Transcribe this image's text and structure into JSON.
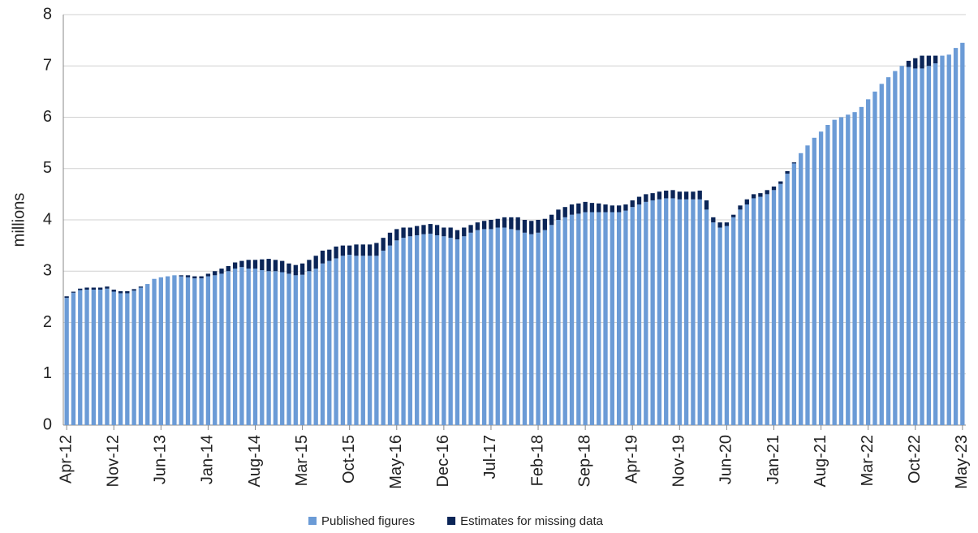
{
  "chart_data": {
    "type": "stacked_bar",
    "y_label": "millions",
    "categories": [
      "Apr-12",
      null,
      null,
      null,
      null,
      null,
      null,
      "Nov-12",
      null,
      null,
      null,
      null,
      null,
      null,
      "Jun-13",
      null,
      null,
      null,
      null,
      null,
      null,
      "Jan-14",
      null,
      null,
      null,
      null,
      null,
      null,
      "Aug-14",
      null,
      null,
      null,
      null,
      null,
      null,
      "Mar-15",
      null,
      null,
      null,
      null,
      null,
      null,
      "Oct-15",
      null,
      null,
      null,
      null,
      null,
      null,
      "May-16",
      null,
      null,
      null,
      null,
      null,
      null,
      "Dec-16",
      null,
      null,
      null,
      null,
      null,
      null,
      "Jul-17",
      null,
      null,
      null,
      null,
      null,
      null,
      "Feb-18",
      null,
      null,
      null,
      null,
      null,
      null,
      "Sep-18",
      null,
      null,
      null,
      null,
      null,
      null,
      "Apr-19",
      null,
      null,
      null,
      null,
      null,
      null,
      "Nov-19",
      null,
      null,
      null,
      null,
      null,
      null,
      "Jun-20",
      null,
      null,
      null,
      null,
      null,
      null,
      "Jan-21",
      null,
      null,
      null,
      null,
      null,
      null,
      "Aug-21",
      null,
      null,
      null,
      null,
      null,
      null,
      "Mar-22",
      null,
      null,
      null,
      null,
      null,
      null,
      "Oct-22",
      null,
      null,
      null,
      null,
      null,
      null,
      "May-23"
    ],
    "series": [
      {
        "name": "Published figures",
        "color": "#6b9bd6",
        "values": [
          2.48,
          2.58,
          2.63,
          2.64,
          2.64,
          2.64,
          2.66,
          2.6,
          2.57,
          2.57,
          2.62,
          2.68,
          2.75,
          2.85,
          2.88,
          2.9,
          2.92,
          2.9,
          2.88,
          2.86,
          2.86,
          2.9,
          2.92,
          2.95,
          3.0,
          3.05,
          3.08,
          3.05,
          3.05,
          3.02,
          3.0,
          3.0,
          2.98,
          2.95,
          2.92,
          2.93,
          3.0,
          3.05,
          3.15,
          3.2,
          3.25,
          3.3,
          3.32,
          3.3,
          3.3,
          3.3,
          3.3,
          3.4,
          3.5,
          3.6,
          3.65,
          3.68,
          3.7,
          3.72,
          3.73,
          3.7,
          3.68,
          3.65,
          3.62,
          3.68,
          3.75,
          3.8,
          3.82,
          3.82,
          3.85,
          3.85,
          3.82,
          3.8,
          3.75,
          3.72,
          3.75,
          3.8,
          3.9,
          4.0,
          4.05,
          4.1,
          4.12,
          4.15,
          4.15,
          4.15,
          4.15,
          4.15,
          4.15,
          4.18,
          4.25,
          4.3,
          4.35,
          4.38,
          4.4,
          4.42,
          4.42,
          4.4,
          4.4,
          4.4,
          4.4,
          4.2,
          3.95,
          3.85,
          3.88,
          4.05,
          4.2,
          4.3,
          4.42,
          4.45,
          4.5,
          4.58,
          4.7,
          4.9,
          5.1,
          5.3,
          5.45,
          5.6,
          5.72,
          5.85,
          5.95,
          6.0,
          6.05,
          6.1,
          6.2,
          6.35,
          6.5,
          6.65,
          6.78,
          6.9,
          7.0,
          6.98,
          6.95,
          6.95,
          7.0,
          7.05,
          7.2,
          7.22,
          7.35,
          7.45
        ]
      },
      {
        "name": "Estimates for missing data",
        "color": "#0b2557",
        "values": [
          0.03,
          0.02,
          0.03,
          0.04,
          0.04,
          0.04,
          0.04,
          0.04,
          0.04,
          0.04,
          0.03,
          0.02,
          0,
          0,
          0,
          0,
          0,
          0.02,
          0.04,
          0.04,
          0.04,
          0.05,
          0.08,
          0.1,
          0.1,
          0.12,
          0.12,
          0.17,
          0.17,
          0.21,
          0.24,
          0.22,
          0.22,
          0.2,
          0.2,
          0.22,
          0.22,
          0.25,
          0.25,
          0.22,
          0.23,
          0.2,
          0.18,
          0.22,
          0.22,
          0.22,
          0.25,
          0.25,
          0.25,
          0.22,
          0.2,
          0.17,
          0.18,
          0.18,
          0.19,
          0.2,
          0.17,
          0.2,
          0.18,
          0.17,
          0.15,
          0.15,
          0.16,
          0.18,
          0.17,
          0.2,
          0.23,
          0.25,
          0.25,
          0.26,
          0.25,
          0.22,
          0.2,
          0.2,
          0.2,
          0.2,
          0.2,
          0.2,
          0.18,
          0.17,
          0.15,
          0.13,
          0.13,
          0.12,
          0.13,
          0.15,
          0.15,
          0.14,
          0.15,
          0.15,
          0.16,
          0.15,
          0.15,
          0.15,
          0.17,
          0.18,
          0.1,
          0.1,
          0.07,
          0.05,
          0.08,
          0.1,
          0.08,
          0.07,
          0.08,
          0.07,
          0.05,
          0.05,
          0.02,
          0,
          0,
          0,
          0,
          0,
          0,
          0,
          0,
          0,
          0,
          0,
          0,
          0,
          0,
          0,
          0,
          0.12,
          0.2,
          0.25,
          0.2,
          0.15,
          0,
          0,
          0,
          0
        ]
      }
    ],
    "ylim": [
      0,
      8
    ],
    "yticks": [
      0,
      1,
      2,
      3,
      4,
      5,
      6,
      7,
      8
    ],
    "grid": true,
    "legend": "bottom"
  }
}
